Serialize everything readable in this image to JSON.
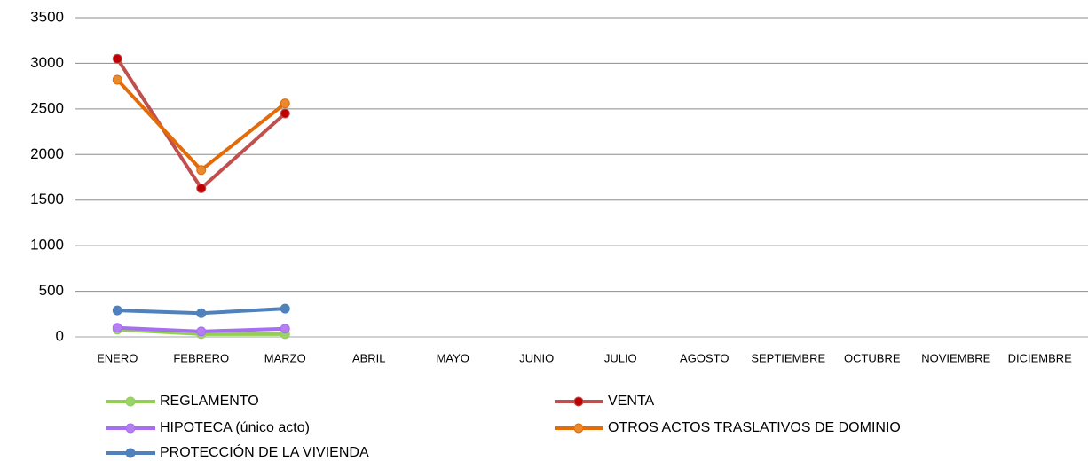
{
  "chart_data": {
    "type": "line",
    "categories": [
      "ENERO",
      "FEBRERO",
      "MARZO",
      "ABRIL",
      "MAYO",
      "JUNIO",
      "JULIO",
      "AGOSTO",
      "SEPTIEMBRE",
      "OCTUBRE",
      "NOVIEMBRE",
      "DICIEMBRE"
    ],
    "series": [
      {
        "name": "REGLAMENTO",
        "color": "#92d050",
        "marker_color": "#9bd36b",
        "values": [
          80,
          30,
          30,
          null,
          null,
          null,
          null,
          null,
          null,
          null,
          null,
          null
        ]
      },
      {
        "name": "VENTA",
        "color": "#c0504d",
        "marker_color": "#c00000",
        "values": [
          3050,
          1630,
          2450,
          null,
          null,
          null,
          null,
          null,
          null,
          null,
          null,
          null
        ]
      },
      {
        "name": "HIPOTECA (único acto)",
        "color": "#a66ef0",
        "marker_color": "#b57ff2",
        "values": [
          100,
          60,
          90,
          null,
          null,
          null,
          null,
          null,
          null,
          null,
          null,
          null
        ]
      },
      {
        "name": "OTROS ACTOS TRASLATIVOS DE DOMINIO",
        "color": "#e36c09",
        "marker_color": "#e98a2e",
        "values": [
          2820,
          1830,
          2560,
          null,
          null,
          null,
          null,
          null,
          null,
          null,
          null,
          null
        ]
      },
      {
        "name": "PROTECCIÓN DE LA VIVIENDA",
        "color": "#4f81bd",
        "marker_color": "#4f81bd",
        "values": [
          290,
          260,
          310,
          null,
          null,
          null,
          null,
          null,
          null,
          null,
          null,
          null
        ]
      }
    ],
    "ylim": [
      0,
      3500
    ],
    "yticks": [
      0,
      500,
      1000,
      1500,
      2000,
      2500,
      3000,
      3500
    ],
    "grid": true
  }
}
